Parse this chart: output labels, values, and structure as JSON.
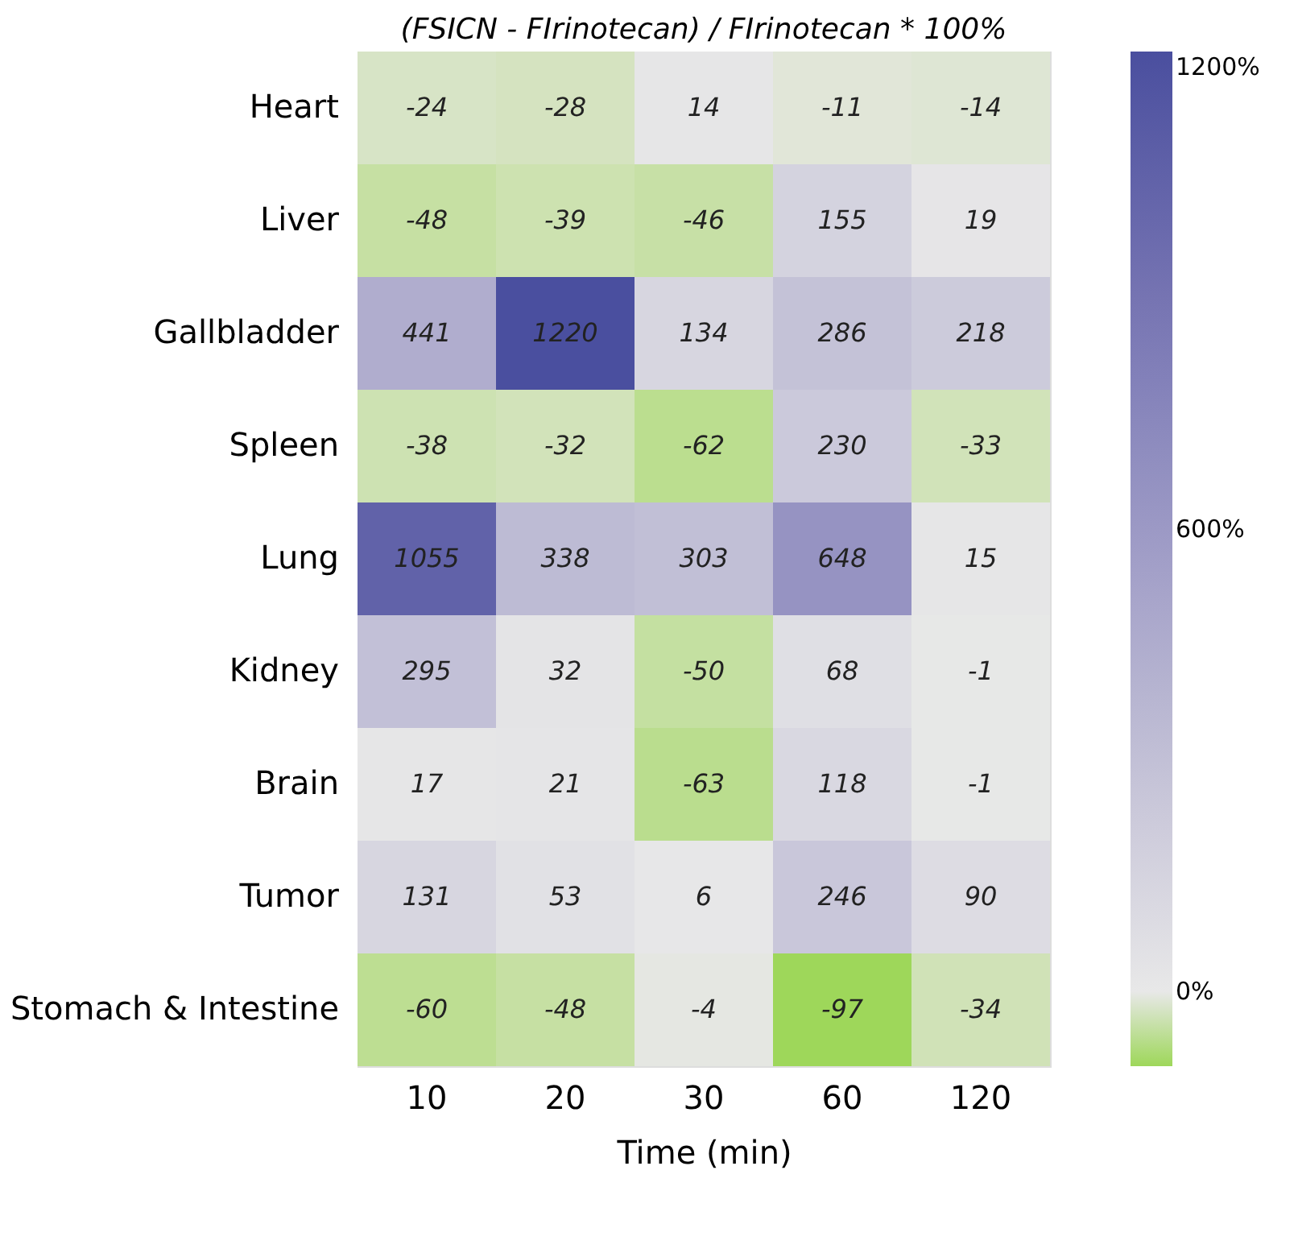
{
  "chart_data": {
    "type": "heatmap",
    "title": "(FSICN - FIrinotecan) / FIrinotecan * 100%",
    "xlabel": "Time (min)",
    "categories": [
      "10",
      "20",
      "30",
      "60",
      "120"
    ],
    "y_categories": [
      "Heart",
      "Liver",
      "Gallbladder",
      "Spleen",
      "Lung",
      "Kidney",
      "Brain",
      "Tumor",
      "Stomach & Intestine"
    ],
    "cells": [
      [
        -24,
        -28,
        14,
        -11,
        -14
      ],
      [
        -48,
        -39,
        -46,
        155,
        19
      ],
      [
        441,
        1220,
        134,
        286,
        218
      ],
      [
        -38,
        -32,
        -62,
        230,
        -33
      ],
      [
        1055,
        338,
        303,
        648,
        15
      ],
      [
        295,
        32,
        -50,
        68,
        -1
      ],
      [
        17,
        21,
        -63,
        118,
        -1
      ],
      [
        131,
        53,
        6,
        246,
        90
      ],
      [
        -60,
        -48,
        -4,
        -97,
        -34
      ]
    ],
    "clim": [
      -97,
      1220
    ],
    "cticks": [
      {
        "value": 0,
        "label": "0%"
      },
      {
        "value": 600,
        "label": "600%"
      },
      {
        "value": 1200,
        "label": "1200%"
      }
    ],
    "colors": [
      "#9ed75a",
      "#e8e8e8",
      "#4a4f9f"
    ],
    "data_labels": true
  }
}
